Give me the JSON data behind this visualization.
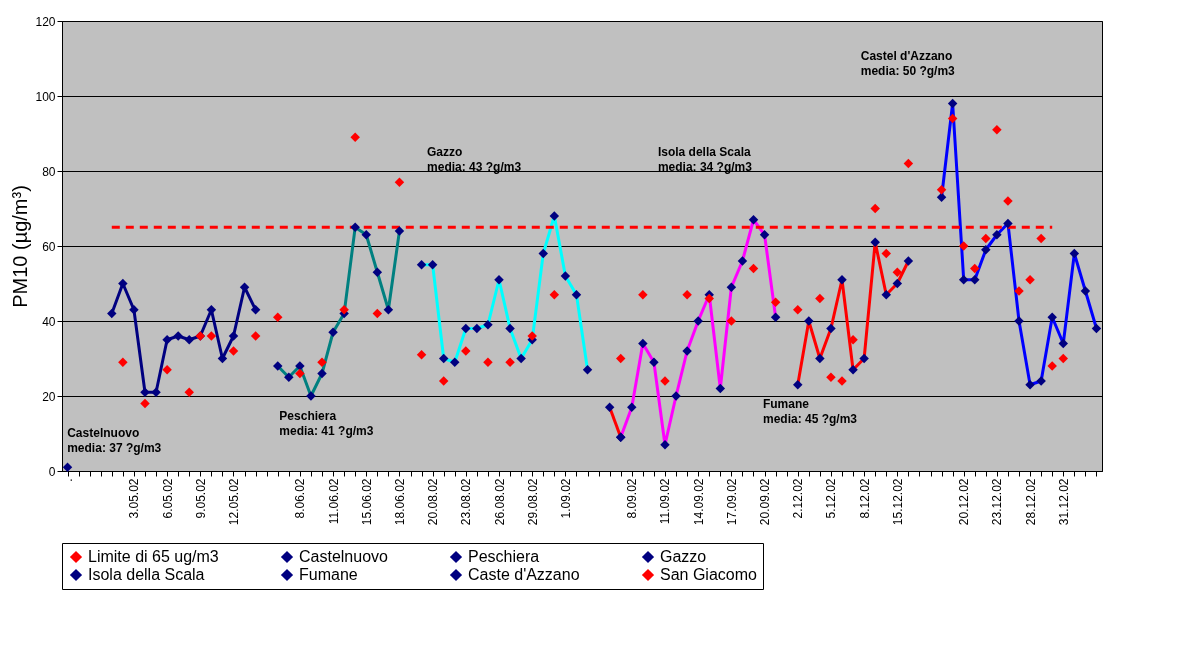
{
  "chart_data": {
    "type": "line",
    "ylabel": "PM10 (µg/m³)",
    "ylim": [
      0,
      120
    ],
    "yticks": [
      0,
      20,
      40,
      60,
      80,
      100,
      120
    ],
    "grid": "y",
    "legend": "bottom",
    "marker": "diamond",
    "categories": [
      ".",
      null,
      null,
      null,
      null,
      null,
      "3.05.02",
      null,
      null,
      "6.05.02",
      null,
      null,
      "9.05.02",
      null,
      null,
      "12.05.02",
      null,
      null,
      null,
      null,
      null,
      "8.06.02",
      null,
      null,
      "11.06.02",
      null,
      null,
      "15.06.02",
      null,
      null,
      "18.06.02",
      null,
      null,
      "20.08.02",
      null,
      null,
      "23.08.02",
      null,
      null,
      "26.08.02",
      null,
      null,
      "29.08.02",
      null,
      null,
      "1.09.02",
      null,
      null,
      null,
      null,
      null,
      "8.09.02",
      null,
      null,
      "11.09.02",
      null,
      null,
      "14.09.02",
      null,
      null,
      "17.09.02",
      null,
      null,
      "20.09.02",
      null,
      null,
      "2.12.02",
      null,
      null,
      "5.12.02",
      null,
      null,
      "8.12.02",
      null,
      null,
      "15.12.02",
      null,
      null,
      null,
      null,
      null,
      "20.12.02",
      null,
      null,
      "23.12.02",
      null,
      null,
      "28.12.02",
      null,
      null,
      "31.12.02",
      null,
      null,
      null
    ],
    "series": [
      {
        "name": "Limite di 65 ug/m3",
        "color": "#ff0000",
        "line_style": "dashed",
        "marker": "none",
        "values": [
          null,
          null,
          null,
          null,
          65,
          65,
          65,
          65,
          65,
          65,
          65,
          65,
          65,
          65,
          65,
          65,
          65,
          65,
          65,
          65,
          65,
          65,
          65,
          65,
          65,
          65,
          65,
          65,
          65,
          65,
          65,
          65,
          65,
          65,
          65,
          65,
          65,
          65,
          65,
          65,
          65,
          65,
          65,
          65,
          65,
          65,
          65,
          65,
          65,
          65,
          65,
          65,
          65,
          65,
          65,
          65,
          65,
          65,
          65,
          65,
          65,
          65,
          65,
          65,
          65,
          65,
          65,
          65,
          65,
          65,
          65,
          65,
          65,
          65,
          65,
          65,
          65,
          65,
          65,
          65,
          65,
          65,
          65,
          65,
          65,
          65,
          65,
          65,
          65,
          65,
          null,
          null,
          null,
          null
        ]
      },
      {
        "name": "Castelnuovo",
        "color": "#000080",
        "line_style": "solid",
        "values": [
          1,
          null,
          null,
          null,
          42,
          50,
          43,
          21,
          21,
          35,
          36,
          35,
          36,
          43,
          30,
          36,
          49,
          43,
          null,
          null,
          null,
          null,
          null,
          null,
          null,
          null,
          null,
          null,
          null,
          null,
          null,
          null,
          null,
          null,
          null,
          null,
          null,
          null,
          null,
          null,
          null,
          null,
          null,
          null,
          null,
          null,
          null,
          null,
          null,
          null,
          null,
          null,
          null,
          null,
          null,
          null,
          null,
          null,
          null,
          null,
          null,
          null,
          null,
          null,
          null,
          null,
          null,
          null,
          null,
          null,
          null,
          null,
          null,
          null,
          null,
          null,
          null,
          null,
          null,
          null,
          null,
          null,
          null,
          null,
          null,
          null,
          null,
          null,
          null,
          null,
          null,
          null,
          null,
          null
        ]
      },
      {
        "name": "Peschiera",
        "color": "#008080",
        "line_style": "solid",
        "values": [
          null,
          null,
          null,
          null,
          null,
          null,
          null,
          null,
          null,
          null,
          null,
          null,
          null,
          null,
          null,
          null,
          null,
          null,
          null,
          28,
          25,
          28,
          20,
          26,
          37,
          42,
          65,
          63,
          53,
          43,
          64,
          null,
          null,
          null,
          null,
          null,
          null,
          null,
          null,
          null,
          null,
          null,
          null,
          null,
          null,
          null,
          null,
          null,
          null,
          null,
          null,
          null,
          null,
          null,
          null,
          null,
          null,
          null,
          null,
          null,
          null,
          null,
          null,
          null,
          null,
          null,
          null,
          null,
          null,
          null,
          null,
          null,
          null,
          null,
          null,
          null,
          null,
          null,
          null,
          null,
          null,
          null,
          null,
          null,
          null,
          null,
          null,
          null,
          null,
          null,
          null,
          null,
          null,
          null
        ]
      },
      {
        "name": "Gazzo",
        "color": "#00ffff",
        "line_style": "solid",
        "values": [
          null,
          null,
          null,
          null,
          null,
          null,
          null,
          null,
          null,
          null,
          null,
          null,
          null,
          null,
          null,
          null,
          null,
          null,
          null,
          null,
          null,
          null,
          null,
          null,
          null,
          null,
          null,
          null,
          null,
          null,
          null,
          null,
          55,
          55,
          30,
          29,
          38,
          38,
          39,
          51,
          38,
          30,
          35,
          58,
          68,
          52,
          47,
          27,
          null,
          null,
          null,
          null,
          null,
          null,
          null,
          null,
          null,
          null,
          null,
          null,
          null,
          null,
          null,
          null,
          null,
          null,
          null,
          null,
          null,
          null,
          null,
          null,
          null,
          null,
          null,
          null,
          null,
          null,
          null,
          null,
          null,
          null,
          null,
          null,
          null,
          null,
          null,
          null,
          null,
          null,
          null,
          null,
          null,
          null
        ]
      },
      {
        "name": "Isola della Scala",
        "color": "#ff00ff",
        "line_style": "solid",
        "values": [
          null,
          null,
          null,
          null,
          null,
          null,
          null,
          null,
          null,
          null,
          null,
          null,
          null,
          null,
          null,
          null,
          null,
          null,
          null,
          null,
          null,
          null,
          null,
          null,
          null,
          null,
          null,
          null,
          null,
          null,
          null,
          null,
          null,
          null,
          null,
          null,
          null,
          null,
          null,
          null,
          null,
          null,
          null,
          null,
          null,
          null,
          null,
          null,
          null,
          null,
          9,
          17,
          34,
          29,
          7,
          20,
          32,
          40,
          47,
          22,
          49,
          56,
          67,
          63,
          41,
          null,
          null,
          null,
          null,
          null,
          null,
          null,
          null,
          null,
          null,
          null,
          null,
          null,
          null,
          null,
          null,
          null,
          null,
          null,
          null,
          null,
          null,
          null,
          null,
          null,
          null,
          null,
          null,
          null
        ]
      },
      {
        "name": "Fumane",
        "color": "#ff0000",
        "line_style": "solid",
        "values": [
          null,
          null,
          null,
          null,
          null,
          null,
          null,
          null,
          null,
          null,
          null,
          null,
          null,
          null,
          null,
          null,
          null,
          null,
          null,
          null,
          null,
          null,
          null,
          null,
          null,
          null,
          null,
          null,
          null,
          null,
          null,
          null,
          null,
          null,
          null,
          null,
          null,
          null,
          null,
          null,
          null,
          null,
          null,
          null,
          null,
          null,
          null,
          null,
          null,
          17,
          9,
          null,
          null,
          null,
          null,
          null,
          null,
          null,
          null,
          null,
          null,
          null,
          null,
          null,
          null,
          null,
          23,
          40,
          30,
          38,
          51,
          27,
          30,
          61,
          47,
          50,
          56,
          null,
          null,
          null,
          null,
          null,
          null,
          null,
          null,
          null,
          null,
          null,
          null,
          null,
          null,
          null,
          null,
          null
        ]
      },
      {
        "name": "Caste d'Azzano",
        "color": "#0000ff",
        "line_style": "solid",
        "values": [
          null,
          null,
          null,
          null,
          null,
          null,
          null,
          null,
          null,
          null,
          null,
          null,
          null,
          null,
          null,
          null,
          null,
          null,
          null,
          null,
          null,
          null,
          null,
          null,
          null,
          null,
          null,
          null,
          null,
          null,
          null,
          null,
          null,
          null,
          null,
          null,
          null,
          null,
          null,
          null,
          null,
          null,
          null,
          null,
          null,
          null,
          null,
          null,
          null,
          null,
          null,
          null,
          null,
          null,
          null,
          null,
          null,
          null,
          null,
          null,
          null,
          null,
          null,
          null,
          null,
          null,
          null,
          null,
          null,
          null,
          null,
          null,
          null,
          null,
          null,
          null,
          null,
          null,
          null,
          73,
          98,
          51,
          51,
          59,
          63,
          66,
          40,
          23,
          24,
          41,
          34,
          58,
          48,
          38
        ]
      },
      {
        "name": "San Giacomo",
        "type": "scatter",
        "color": "#ff0000",
        "values": [
          null,
          null,
          null,
          null,
          null,
          29,
          null,
          18,
          null,
          27,
          null,
          21,
          36,
          36,
          null,
          32,
          null,
          36,
          null,
          41,
          null,
          26,
          null,
          29,
          null,
          43,
          89,
          null,
          42,
          null,
          77,
          null,
          31,
          null,
          24,
          null,
          32,
          null,
          29,
          null,
          29,
          null,
          36,
          null,
          47,
          null,
          null,
          null,
          null,
          null,
          30,
          null,
          47,
          null,
          24,
          null,
          47,
          null,
          46,
          null,
          40,
          null,
          54,
          null,
          45,
          null,
          43,
          null,
          46,
          25,
          24,
          35,
          null,
          70,
          58,
          53,
          82,
          null,
          null,
          75,
          94,
          60,
          54,
          62,
          91,
          72,
          48,
          51,
          62,
          28,
          30,
          null,
          null,
          null
        ]
      }
    ],
    "annotations": [
      "Castelnuovo\nmedia: 37 ?g/m3",
      "Peschiera\nmedia: 41 ?g/m3",
      "Gazzo\nmedia: 43 ?g/m3",
      "Isola della Scala\nmedia: 34 ?g/m3",
      "Fumane\nmedia: 45 ?g/m3",
      "Castel d'Azzano\nmedia: 50 ?g/m3"
    ]
  }
}
